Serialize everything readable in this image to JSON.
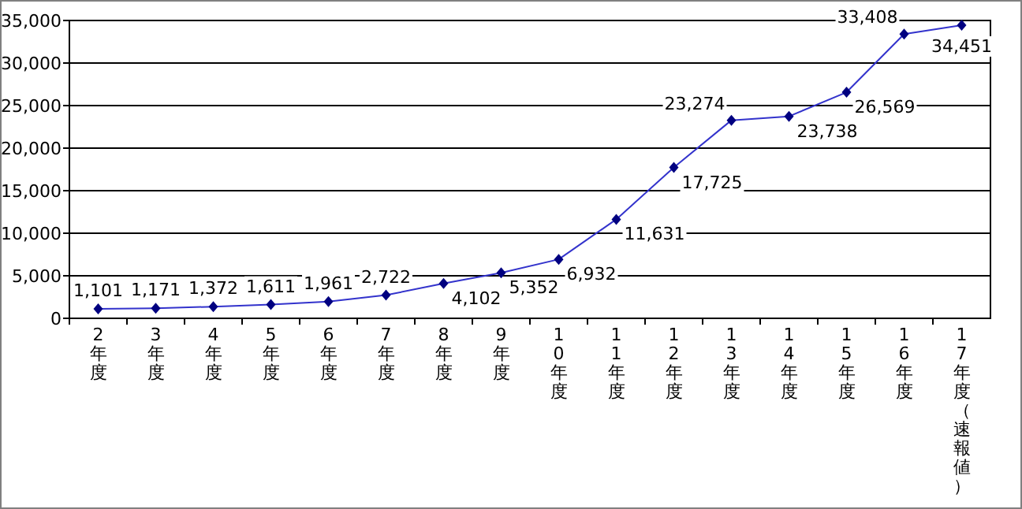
{
  "chart_data": {
    "type": "line",
    "categories": [
      "2年度",
      "3年度",
      "4年度",
      "5年度",
      "6年度",
      "7年度",
      "8年度",
      "9年度",
      "10年度",
      "11年度",
      "12年度",
      "13年度",
      "14年度",
      "15年度",
      "16年度",
      "17年度（速報値）"
    ],
    "series": [
      {
        "color": "#3333cc",
        "values": [
          1101,
          1171,
          1372,
          1611,
          1961,
          2722,
          4102,
          5352,
          6932,
          11631,
          17725,
          23274,
          23738,
          26569,
          33408,
          34451
        ],
        "value_labels": [
          "1,101",
          "1,171",
          "1,372",
          "1,611",
          "1,961",
          "2,722",
          "4,102",
          "5,352",
          "6,932",
          "11,631",
          "17,725",
          "23,274",
          "23,738",
          "26,569",
          "33,408",
          "34,451"
        ]
      }
    ],
    "ylim": [
      0,
      35000
    ],
    "yticks": [
      {
        "value": 0,
        "label": "0"
      },
      {
        "value": 5000,
        "label": "5,000"
      },
      {
        "value": 10000,
        "label": "10,000"
      },
      {
        "value": 15000,
        "label": "15,000"
      },
      {
        "value": 20000,
        "label": "20,000"
      },
      {
        "value": 25000,
        "label": "25,000"
      },
      {
        "value": 30000,
        "label": "30,000"
      },
      {
        "value": 35000,
        "label": "35,000"
      }
    ],
    "grid": "y",
    "marker": "diamond",
    "line_style": "solid"
  }
}
